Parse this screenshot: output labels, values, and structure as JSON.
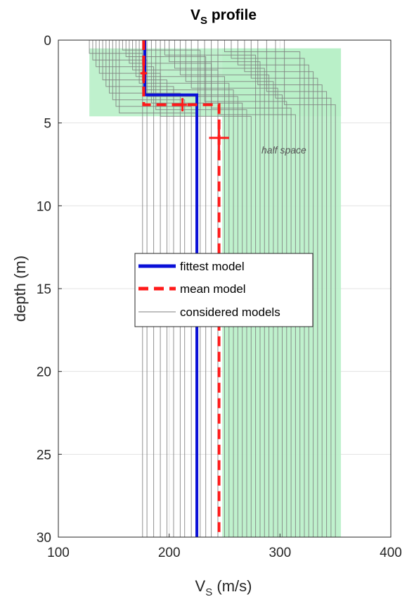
{
  "chart_data": {
    "type": "line",
    "title": "V",
    "title_sub": "S",
    "title_rest": " profile",
    "xlabel": "V",
    "xlabel_sub": "S",
    "xlabel_rest": " (m/s)",
    "ylabel": "depth (m)",
    "xlim": [
      100,
      400
    ],
    "ylim": [
      0,
      30
    ],
    "y_reversed": true,
    "xticks": [
      100,
      200,
      300,
      400
    ],
    "yticks": [
      0,
      5,
      10,
      15,
      20,
      25,
      30
    ],
    "grid": true,
    "annotation": "half space",
    "shaded_band": {
      "vs_range": [
        128,
        355
      ],
      "depth_range": [
        0.5,
        4.6
      ],
      "color": "#b8f0c8"
    },
    "search_area_color": "#b8f0c8",
    "legend": {
      "placement": "center",
      "entries": [
        {
          "label": "fittest model",
          "color": "#0a10d8",
          "style": "solid"
        },
        {
          "label": "mean model",
          "color": "#ff1a1a",
          "style": "dashed"
        },
        {
          "label": "considered models",
          "color": "#7f7f7f",
          "style": "thin"
        }
      ]
    },
    "series": [
      {
        "name": "fittest model",
        "color": "#0a10d8",
        "points": [
          [
            178,
            0
          ],
          [
            178,
            3.3
          ],
          [
            225,
            3.3
          ],
          [
            225,
            30
          ]
        ]
      },
      {
        "name": "mean model",
        "color": "#ff1a1a",
        "points": [
          [
            177,
            0
          ],
          [
            177,
            3.9
          ],
          [
            245,
            3.9
          ],
          [
            245,
            30
          ]
        ],
        "error_bars": [
          {
            "x": 177,
            "y": 2.0,
            "xerr": 3,
            "yerr": 0.6
          },
          {
            "x": 212,
            "y": 3.9,
            "xerr": 4,
            "yerr": 0.4
          },
          {
            "x": 245,
            "y": 5.9,
            "xerr": 9,
            "yerr": 0.8
          }
        ]
      }
    ],
    "considered_models": {
      "color": "#7f7f7f",
      "layer1_vs": [
        128,
        131,
        134,
        137,
        140,
        143,
        146,
        149,
        152,
        155,
        158,
        161,
        164,
        167,
        170,
        173,
        176,
        180,
        184,
        188,
        192,
        196,
        200,
        205,
        210,
        215,
        220,
        226,
        232,
        238,
        244,
        250,
        256,
        262,
        268,
        274,
        280,
        288,
        296,
        304
      ],
      "layer1_depth": [
        0.8,
        1.2,
        1.6,
        2.0,
        2.4,
        2.8,
        3.2,
        3.6,
        4.0,
        4.4,
        0.6,
        1.0,
        1.4,
        1.8,
        2.2,
        2.6,
        3.0,
        3.4,
        3.8,
        4.2,
        4.6,
        0.9,
        1.3,
        1.7,
        2.1,
        2.5,
        2.9,
        3.3,
        3.7,
        4.1,
        4.5,
        0.7,
        1.1,
        1.5,
        1.9,
        2.3,
        2.7,
        3.1,
        3.5,
        3.9
      ],
      "halfspace_vs": [
        176,
        180,
        186,
        192,
        198,
        204,
        210,
        214,
        220,
        224,
        228,
        233,
        238,
        244,
        250,
        254,
        258,
        262,
        266,
        270,
        274,
        278,
        282,
        286,
        290,
        294,
        298,
        302,
        306,
        310,
        314,
        318,
        322,
        326,
        330,
        334,
        338,
        342,
        346,
        350
      ]
    }
  }
}
